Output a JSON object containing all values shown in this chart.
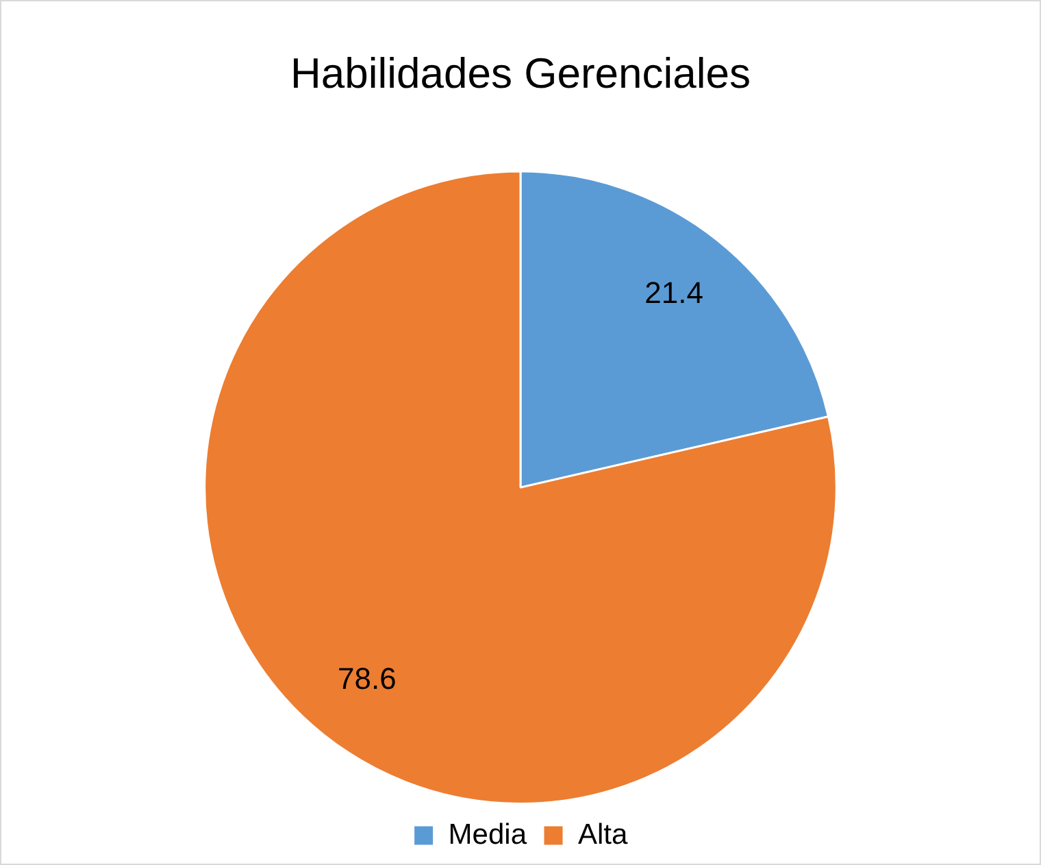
{
  "chart_data": {
    "type": "pie",
    "title": "Habilidades Gerenciales",
    "categories": [
      "Media",
      "Alta"
    ],
    "values": [
      21.4,
      78.6
    ],
    "colors": [
      "#5b9bd5",
      "#ed7d31"
    ],
    "data_labels": true,
    "legend": "bottom"
  }
}
